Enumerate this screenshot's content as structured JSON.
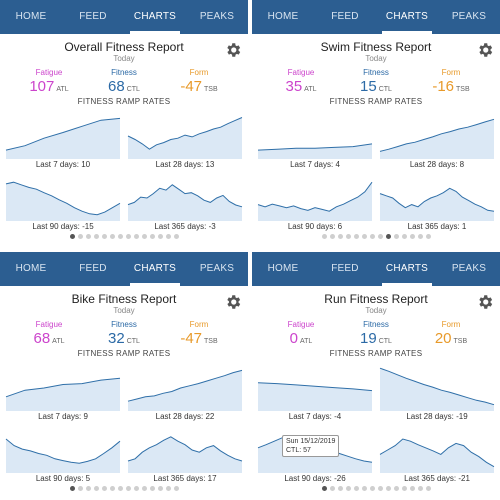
{
  "tabs": [
    "HOME",
    "FEED",
    "CHARTS",
    "PEAKS"
  ],
  "active_tab": "CHARTS",
  "colors": {
    "tabbar": "#2c5e91",
    "fatigue": "#cc44cc",
    "fitness": "#2c6aa6",
    "form": "#e89a2a",
    "line": "#2f6fa8",
    "fill": "#dbe8f5"
  },
  "icons": {
    "settings": "gear-icon"
  },
  "labels": {
    "fatigue": "Fatigue",
    "fitness": "Fitness",
    "form": "Form",
    "atl": "ATL",
    "ctl": "CTL",
    "tsb": "TSB",
    "ramp_heading": "FITNESS RAMP RATES"
  },
  "reports": [
    {
      "title": "Overall Fitness Report",
      "subtitle": "Today",
      "fatigue": "107",
      "fitness": "68",
      "form": "-47",
      "charts": [
        {
          "label": "Last 7 days: 10",
          "shape": [
            0.18,
            0.28,
            0.45,
            0.58,
            0.72,
            0.86,
            0.9
          ]
        },
        {
          "label": "Last 28 days: 13",
          "shape": [
            0.5,
            0.42,
            0.32,
            0.2,
            0.3,
            0.35,
            0.42,
            0.45,
            0.52,
            0.48,
            0.55,
            0.6,
            0.66,
            0.7,
            0.78,
            0.85,
            0.92
          ]
        },
        {
          "label": "Last 90 days: -15",
          "shape": [
            0.82,
            0.86,
            0.8,
            0.74,
            0.7,
            0.62,
            0.55,
            0.46,
            0.38,
            0.28,
            0.2,
            0.14,
            0.12,
            0.18,
            0.28,
            0.38
          ]
        },
        {
          "label": "Last 365 days: -3",
          "shape": [
            0.35,
            0.4,
            0.52,
            0.5,
            0.6,
            0.72,
            0.68,
            0.8,
            0.7,
            0.6,
            0.62,
            0.55,
            0.45,
            0.4,
            0.5,
            0.56,
            0.42,
            0.34,
            0.3
          ]
        }
      ],
      "page_dots": 14,
      "active_dot": 0
    },
    {
      "title": "Swim Fitness Report",
      "subtitle": "Today",
      "fatigue": "35",
      "fitness": "15",
      "form": "-16",
      "charts": [
        {
          "label": "Last 7 days: 4",
          "shape": [
            0.18,
            0.2,
            0.22,
            0.22,
            0.24,
            0.26,
            0.32
          ]
        },
        {
          "label": "Last 28 days: 8",
          "shape": [
            0.15,
            0.2,
            0.26,
            0.32,
            0.36,
            0.42,
            0.48,
            0.55,
            0.6,
            0.66,
            0.7,
            0.76,
            0.82,
            0.88
          ]
        },
        {
          "label": "Last 90 days: 6",
          "shape": [
            0.35,
            0.3,
            0.36,
            0.32,
            0.28,
            0.32,
            0.26,
            0.22,
            0.28,
            0.24,
            0.2,
            0.3,
            0.36,
            0.44,
            0.52,
            0.64,
            0.86
          ]
        },
        {
          "label": "Last 365 days: 1",
          "shape": [
            0.6,
            0.55,
            0.5,
            0.38,
            0.28,
            0.35,
            0.3,
            0.42,
            0.5,
            0.55,
            0.62,
            0.72,
            0.65,
            0.52,
            0.44,
            0.36,
            0.3,
            0.22,
            0.2
          ]
        }
      ],
      "page_dots": 14,
      "active_dot": 8
    },
    {
      "title": "Bike Fitness Report",
      "subtitle": "Today",
      "fatigue": "68",
      "fitness": "32",
      "form": "-47",
      "charts": [
        {
          "label": "Last 7 days: 9",
          "shape": [
            0.3,
            0.45,
            0.5,
            0.58,
            0.6,
            0.68,
            0.72
          ]
        },
        {
          "label": "Last 28 days: 22",
          "shape": [
            0.2,
            0.25,
            0.3,
            0.32,
            0.38,
            0.42,
            0.5,
            0.55,
            0.6,
            0.66,
            0.72,
            0.78,
            0.85,
            0.9
          ]
        },
        {
          "label": "Last 90 days: 5",
          "shape": [
            0.75,
            0.6,
            0.52,
            0.48,
            0.42,
            0.38,
            0.3,
            0.26,
            0.22,
            0.2,
            0.24,
            0.3,
            0.42,
            0.55,
            0.7
          ]
        },
        {
          "label": "Last 365 days: 17",
          "shape": [
            0.25,
            0.3,
            0.45,
            0.55,
            0.62,
            0.72,
            0.8,
            0.7,
            0.62,
            0.5,
            0.45,
            0.55,
            0.6,
            0.48,
            0.38,
            0.3,
            0.25
          ]
        }
      ],
      "page_dots": 14,
      "active_dot": 0
    },
    {
      "title": "Run Fitness Report",
      "subtitle": "Today",
      "fatigue": "0",
      "fitness": "19",
      "form": "20",
      "charts": [
        {
          "label": "Last 7 days: -4",
          "shape": [
            0.62,
            0.6,
            0.57,
            0.54,
            0.51,
            0.48,
            0.44
          ]
        },
        {
          "label": "Last 28 days: -19",
          "shape": [
            0.95,
            0.88,
            0.8,
            0.72,
            0.65,
            0.58,
            0.52,
            0.45,
            0.4,
            0.34,
            0.28,
            0.22,
            0.18,
            0.12
          ]
        },
        {
          "label": "Last 90 days: -26",
          "shape": [
            0.55,
            0.62,
            0.7,
            0.78,
            0.82,
            0.76,
            0.7,
            0.62,
            0.55,
            0.48,
            0.42,
            0.36,
            0.3,
            0.25,
            0.22
          ]
        },
        {
          "label": "Last 365 days: -21",
          "shape": [
            0.4,
            0.5,
            0.6,
            0.75,
            0.7,
            0.62,
            0.55,
            0.48,
            0.4,
            0.55,
            0.65,
            0.6,
            0.45,
            0.35,
            0.22,
            0.12
          ]
        }
      ],
      "tooltip": {
        "line1": "Sun 15/12/2019",
        "line2": "CTL: 57"
      },
      "page_dots": 14,
      "active_dot": 0
    }
  ]
}
